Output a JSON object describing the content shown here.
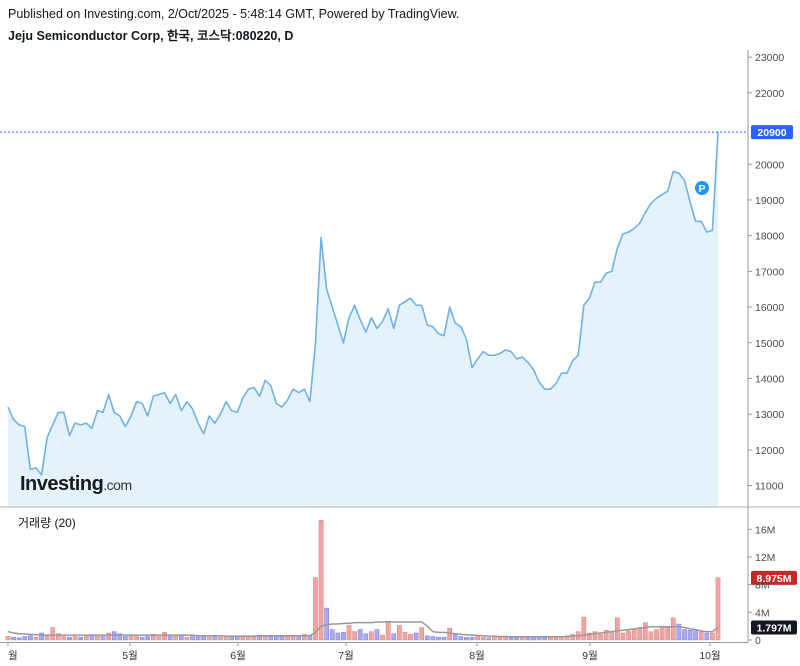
{
  "header": {
    "published": "Published on Investing.com, 2/Oct/2025 - 5:48:14 GMT, Powered by TradingView.",
    "symbol": "Jeju Semiconductor Corp, 한국, 코스닥:080220, D"
  },
  "logo": {
    "main": "Investing",
    "suffix": ".com"
  },
  "colors": {
    "price_line": "#6fb1e6",
    "price_fill": "#e3f2fb",
    "last_price_badge": "#2962ff",
    "volume_up": "#f0a5a5",
    "volume_down": "#a9a9f2",
    "volume_badge": "#c62828",
    "volume_ma": "#999999",
    "p_marker": "#2196f3"
  },
  "chart_data": [
    {
      "type": "area",
      "title": "Jeju Semiconductor Corp, 한국, 코스닥:080220, D",
      "xlabel": "",
      "ylabel": "",
      "x_ticks": [
        "월",
        "5월",
        "6월",
        "7월",
        "8월",
        "9월",
        "10월"
      ],
      "y_ticks": [
        11000,
        12000,
        13000,
        14000,
        15000,
        16000,
        17000,
        18000,
        19000,
        20000,
        21000,
        22000,
        23000
      ],
      "y_tick_labels": [
        "11000",
        "12000",
        "13000",
        "14000",
        "15000",
        "16000",
        "17000",
        "18000",
        "19000",
        "20000",
        "21000",
        "22000",
        "23000"
      ],
      "ylim": [
        10400,
        23200
      ],
      "last_price": 20900,
      "last_price_label": "20900",
      "marker_label": "P",
      "series": [
        {
          "values": [
            13200,
            12850,
            12700,
            12650,
            11450,
            11500,
            11300,
            12350,
            12700,
            13050,
            13050,
            12400,
            12750,
            12700,
            12750,
            12600,
            13100,
            13050,
            13550,
            13050,
            12950,
            12650,
            12950,
            13350,
            13300,
            12950,
            13500,
            13550,
            13600,
            13300,
            13550,
            13100,
            13350,
            13150,
            12750,
            12450,
            12950,
            12750,
            13000,
            13350,
            13100,
            13050,
            13450,
            13700,
            13750,
            13500,
            13950,
            13800,
            13300,
            13200,
            13400,
            13700,
            13600,
            13700,
            13350,
            15000,
            17950,
            16500,
            16000,
            15500,
            15000,
            15700,
            16050,
            15650,
            15300,
            15700,
            15400,
            15600,
            15950,
            15400,
            16050,
            16150,
            16250,
            16050,
            16050,
            15500,
            15450,
            15250,
            15200,
            16000,
            15550,
            15450,
            15100,
            14300,
            14550,
            14750,
            14650,
            14650,
            14700,
            14800,
            14750,
            14550,
            14600,
            14450,
            14250,
            13900,
            13700,
            13700,
            13850,
            14150,
            14150,
            14500,
            14650,
            16050,
            16250,
            16700,
            16700,
            16950,
            17000,
            17650,
            18050,
            18100,
            18200,
            18350,
            18650,
            18900,
            19050,
            19150,
            19250,
            19800,
            19750,
            19550,
            18950,
            18400,
            18400,
            18100,
            18150,
            20900
          ]
        }
      ]
    },
    {
      "type": "bar",
      "title": "거래량 (20)",
      "y_ticks": [
        0,
        4,
        8,
        12,
        16
      ],
      "y_tick_labels": [
        "0",
        "4M",
        "8M",
        "12M",
        "16M"
      ],
      "ylim": [
        -0.3,
        18.5
      ],
      "unit": "M",
      "last_volume": 8.975,
      "last_volume_label": "8.975M",
      "ma_last": 1.797,
      "ma_last_label": "1.797M",
      "series": [
        {
          "name": "volume",
          "values": [
            0.5,
            0.4,
            0.3,
            0.5,
            0.6,
            0.4,
            1.0,
            0.6,
            1.8,
            0.9,
            0.5,
            0.4,
            0.5,
            0.4,
            0.5,
            0.6,
            0.7,
            0.5,
            1.0,
            1.2,
            0.9,
            0.5,
            0.6,
            0.5,
            0.4,
            0.5,
            0.8,
            0.5,
            1.1,
            0.6,
            0.5,
            0.6,
            0.4,
            0.5,
            0.6,
            0.5,
            0.4,
            0.5,
            0.4,
            0.5,
            0.5,
            0.4,
            0.5,
            0.6,
            0.5,
            0.7,
            0.5,
            0.5,
            0.6,
            0.5,
            0.5,
            0.7,
            0.5,
            0.8,
            0.6,
            9.0,
            17.3,
            4.6,
            1.5,
            1.0,
            1.1,
            2.1,
            1.2,
            1.5,
            0.9,
            1.2,
            1.5,
            0.7,
            2.7,
            0.9,
            2.1,
            1.1,
            0.8,
            1.0,
            1.8,
            0.6,
            0.5,
            0.4,
            0.4,
            1.7,
            0.8,
            0.5,
            0.4,
            0.4,
            0.5,
            0.4,
            0.3,
            0.5,
            0.4,
            0.4,
            0.3,
            0.3,
            0.3,
            0.4,
            0.3,
            0.4,
            0.3,
            0.3,
            0.4,
            0.5,
            0.6,
            0.8,
            1.2,
            3.3,
            1.0,
            1.2,
            0.8,
            1.4,
            1.2,
            3.2,
            1.0,
            1.3,
            1.5,
            1.8,
            2.5,
            1.2,
            1.5,
            2.0,
            1.8,
            3.2,
            2.3,
            1.5,
            1.4,
            1.5,
            1.2,
            1.0,
            1.0,
            9.0
          ]
        },
        {
          "name": "MA",
          "values": [
            1.2,
            1.0,
            0.9,
            0.85,
            0.8,
            0.75,
            0.7,
            0.7,
            0.7,
            0.7,
            0.7,
            0.7,
            0.7,
            0.7,
            0.7,
            0.7,
            0.7,
            0.7,
            0.7,
            0.7,
            0.7,
            0.7,
            0.7,
            0.7,
            0.7,
            0.7,
            0.7,
            0.7,
            0.7,
            0.7,
            0.7,
            0.7,
            0.7,
            0.7,
            0.6,
            0.6,
            0.6,
            0.6,
            0.6,
            0.55,
            0.55,
            0.55,
            0.55,
            0.55,
            0.55,
            0.6,
            0.6,
            0.6,
            0.6,
            0.6,
            0.6,
            0.6,
            0.6,
            0.6,
            0.6,
            1.1,
            2.0,
            2.2,
            2.3,
            2.3,
            2.4,
            2.4,
            2.5,
            2.5,
            2.5,
            2.5,
            2.6,
            2.6,
            2.6,
            2.6,
            2.6,
            2.6,
            2.6,
            2.6,
            2.6,
            2.0,
            1.2,
            1.1,
            1.1,
            1.0,
            0.9,
            0.8,
            0.75,
            0.7,
            0.65,
            0.6,
            0.55,
            0.55,
            0.5,
            0.5,
            0.45,
            0.45,
            0.45,
            0.45,
            0.45,
            0.45,
            0.45,
            0.45,
            0.45,
            0.45,
            0.5,
            0.55,
            0.6,
            0.7,
            0.8,
            0.9,
            1.0,
            1.1,
            1.2,
            1.3,
            1.4,
            1.5,
            1.6,
            1.7,
            1.8,
            1.9,
            1.9,
            1.9,
            1.9,
            1.9,
            1.9,
            1.8,
            1.6,
            1.5,
            1.3,
            1.2,
            1.2,
            1.797
          ]
        }
      ]
    }
  ]
}
